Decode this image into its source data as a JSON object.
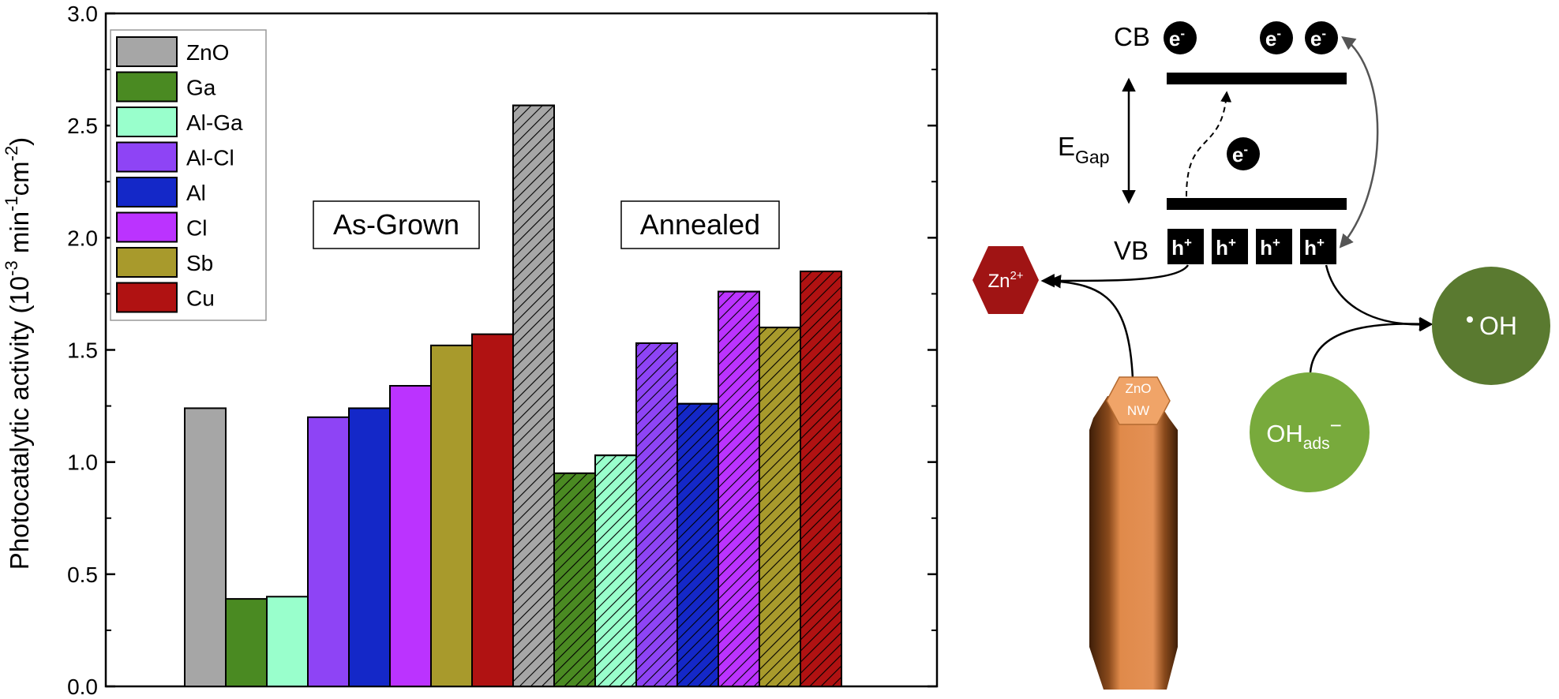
{
  "chart_data": {
    "type": "bar",
    "ylabel": "Photocatalytic activity (10",
    "ylabel_sup1": "-3",
    "ylabel_mid": " min",
    "ylabel_sup2": "-1",
    "ylabel_mid2": "cm",
    "ylabel_sup3": "-2",
    "ylabel_end": ")",
    "ylim": [
      0,
      3.0
    ],
    "yticks": [
      "0.0",
      "0.5",
      "1.0",
      "1.5",
      "2.0",
      "2.5",
      "3.0"
    ],
    "grid": false,
    "legend_position": "top-left",
    "categories": [
      "ZnO",
      "Ga",
      "Al-Ga",
      "Al-Cl",
      "Al",
      "Cl",
      "Sb",
      "Cu"
    ],
    "colors": [
      "#a6a6a6",
      "#4a8a22",
      "#99ffcc",
      "#8e44f5",
      "#1428c8",
      "#bb33ff",
      "#a89a2c",
      "#b01212"
    ],
    "groups": [
      {
        "name": "As-Grown",
        "hatched": false,
        "values": [
          1.24,
          0.39,
          0.4,
          1.2,
          1.24,
          1.34,
          1.52,
          1.57
        ]
      },
      {
        "name": "Annealed",
        "hatched": true,
        "values": [
          2.59,
          0.95,
          1.03,
          1.53,
          1.26,
          1.76,
          1.6,
          1.85
        ]
      }
    ]
  },
  "diagram": {
    "cb_label": "CB",
    "vb_label": "VB",
    "egap_main": "E",
    "egap_sub": "Gap",
    "electron": "e",
    "electron_sup": "-",
    "hole": "h",
    "hole_sup": "+",
    "zn_ion": "Zn",
    "zn_ion_sup": "2+",
    "zno_nw_line1": "ZnO",
    "zno_nw_line2": "NW",
    "oh_radical": "OH",
    "oh_ads_main": "OH",
    "oh_ads_sub": "ads",
    "oh_ads_sup": "−",
    "colors": {
      "zn_hex": "#a01414",
      "nw_orange": "#e08a4a",
      "nw_dark": "#5a2e10",
      "oh_radical": "#5a7a30",
      "oh_ads": "#78aa3c"
    }
  }
}
